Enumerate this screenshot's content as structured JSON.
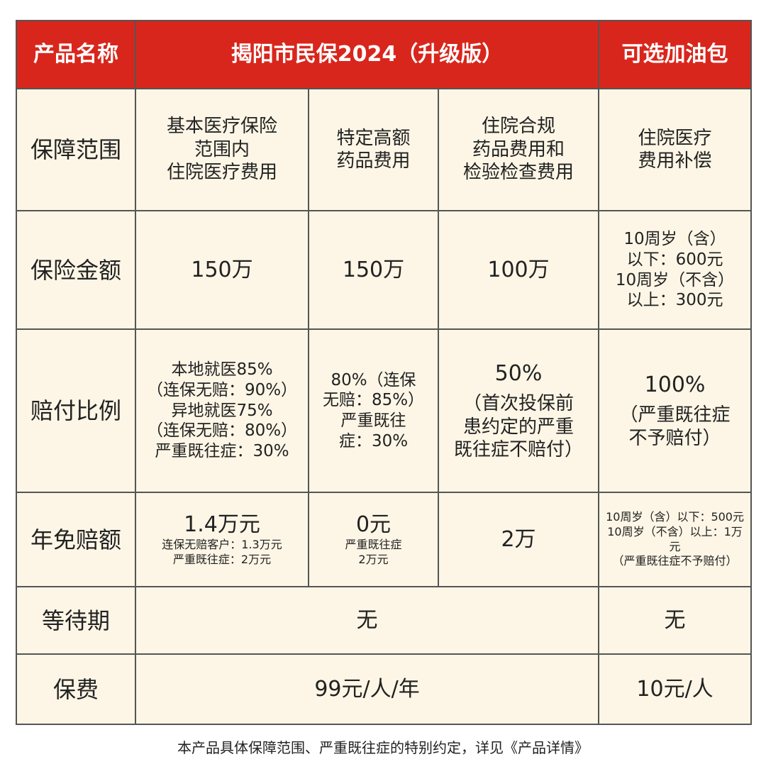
{
  "header": {
    "label": "产品名称",
    "product": "揭阳市民保2024（升级版）",
    "addon": "可选加油包"
  },
  "rows": [
    {
      "label": "保障范围",
      "cells": [
        {
          "lines": [
            "基本医疗保险",
            "范围内",
            "住院医疗费用"
          ]
        },
        {
          "lines": [
            "特定高额",
            "药品费用"
          ]
        },
        {
          "lines": [
            "住院合规",
            "药品费用和",
            "检验检查费用"
          ]
        },
        {
          "lines": [
            "住院医疗",
            "费用补偿"
          ]
        }
      ]
    },
    {
      "label": "保险金额",
      "cells": [
        {
          "lead": "150万"
        },
        {
          "lead": "150万"
        },
        {
          "lead": "100万"
        },
        {
          "lines": [
            "10周岁（含）",
            "以下：600元",
            "10周岁（不含）",
            "以上：300元"
          ]
        }
      ]
    },
    {
      "label": "赔付比例",
      "cells": [
        {
          "lines": [
            "本地就医85%",
            "（连保无赔：90%）",
            "异地就医75%",
            "（连保无赔：80%）",
            "严重既往症：30%"
          ]
        },
        {
          "lines": [
            "80%（连保",
            "无赔：85%）",
            "严重既往",
            "症：30%"
          ]
        },
        {
          "lead": "50%",
          "lines": [
            "（首次投保前",
            "患约定的严重",
            "既往症不赔付）"
          ]
        },
        {
          "lead": "100%",
          "lines": [
            "（严重既往症",
            "不予赔付）"
          ]
        }
      ]
    },
    {
      "label": "年免赔额",
      "cells": [
        {
          "lead": "1.4万元",
          "notes": [
            "连保无赔客户：1.3万元",
            "严重既往症：2万元"
          ]
        },
        {
          "lead": "0元",
          "notes": [
            "严重既往症",
            "2万元"
          ]
        },
        {
          "lead": "2万"
        },
        {
          "notes": [
            "10周岁（含）以下：500元",
            "10周岁（不含）以上：1万元",
            "（严重既往症不予赔付）"
          ]
        }
      ]
    },
    {
      "label": "等待期",
      "cells": [
        {
          "lead": "无",
          "span": 3
        },
        {
          "lead": "无"
        }
      ]
    },
    {
      "label": "保费",
      "cells": [
        {
          "lead": "99元/人/年",
          "span": 3
        },
        {
          "lead": "10元/人"
        }
      ]
    }
  ],
  "footer": "本产品具体保障范围、严重既往症的特别约定，详见《产品详情》"
}
